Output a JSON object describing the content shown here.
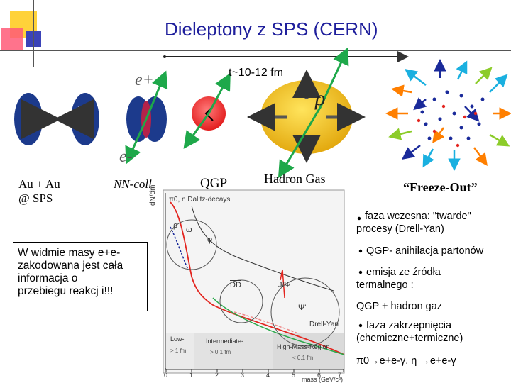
{
  "title": "Dieleptony z SPS (CERN)",
  "time_label": "t~10-12 fm",
  "eplus": "e+",
  "eminus": "e-",
  "rho_symbol": "ρ",
  "stages": {
    "auau": [
      "Au + Au",
      "@ SPS"
    ],
    "nn": "NN-coll.",
    "qgp": "QGP",
    "hadron": "Hadron Gas",
    "freeze": "“Freeze-Out”"
  },
  "note_box": [
    "W widmie masy e+e-",
    "zakodowana jest cała",
    "informacja o",
    "przebiegu reakcj i!!!"
  ],
  "bullets": [
    [
      "faza wczesna: \"twarde\"",
      "procesy (Drell-Yan)"
    ],
    [
      "QGP- anihilacja partonów"
    ],
    [
      "emisja ze źródła",
      "termalnego :"
    ],
    [
      "QGP + hadron gaz"
    ],
    [
      "faza zakrzepnięcia",
      "(chemiczne+termiczne)"
    ],
    [
      "π0→e+e-γ, η →e+e-γ"
    ]
  ],
  "plot": {
    "ylabel": "dN/dm",
    "labels": {
      "dalitz": "π0, η Dalitz-decays",
      "rho": "ρ",
      "omega": "ω",
      "phi": "φ",
      "dd": "DD",
      "jpsi": "J/Ψ",
      "psi": "Ψ'",
      "drellyan": "Drell-Yan",
      "low": "Low-",
      "low_sub": "> 1 fm",
      "intermediate": "Intermediate-",
      "inter_sub": "> 0.1 fm",
      "high": "High-Mass-Region",
      "high_sub": "< 0.1 fm"
    },
    "xticks": [
      "0",
      "1",
      "2",
      "3",
      "4",
      "5",
      "6",
      "7"
    ],
    "xlabel": "mass (GeV/c²)"
  }
}
